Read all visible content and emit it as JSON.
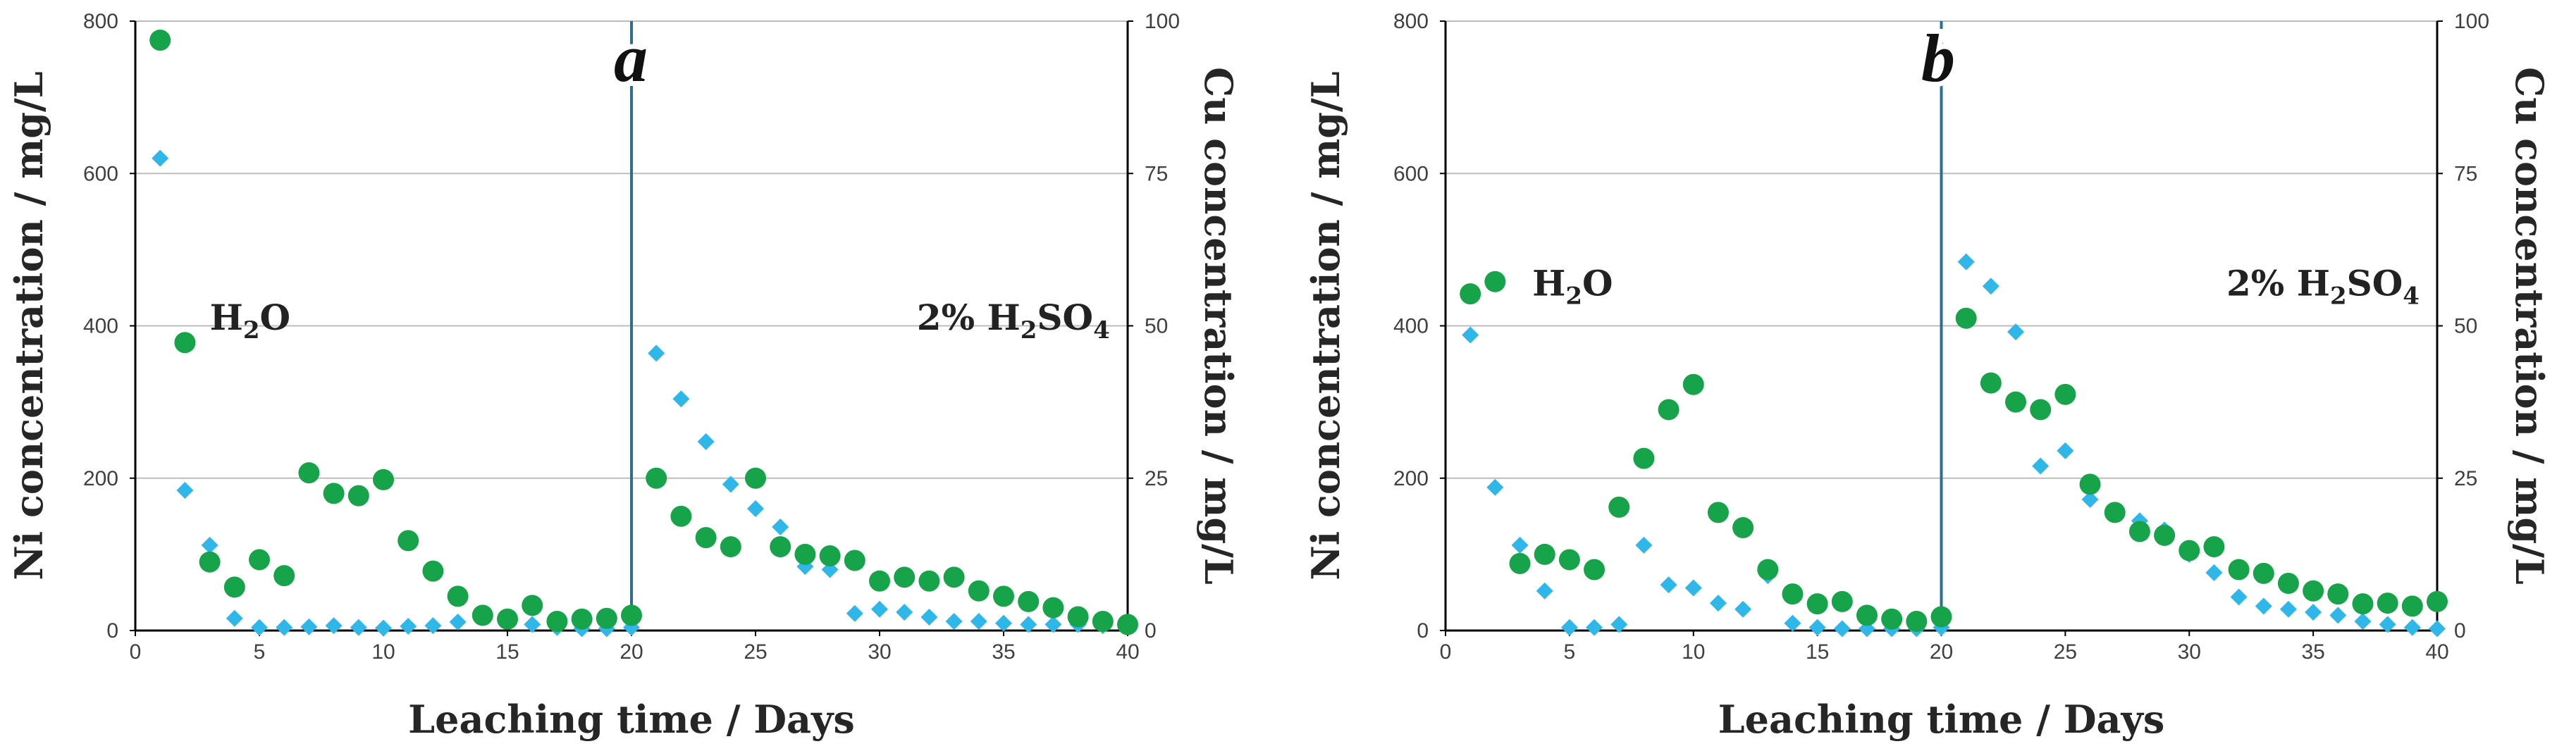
{
  "colors": {
    "ni_marker": "#17A34A",
    "cu_marker": "#2FB7EA",
    "divider_line": "#2E6E96",
    "gridline": "#BDBDBD",
    "axis": "#000000"
  },
  "chart_data": [
    {
      "type": "scatter",
      "panel_label": "a",
      "xlabel": "Leaching time / Days",
      "ylabel_left": "Ni concentration / mg/L",
      "ylabel_right": "Cu concentration / mg/L",
      "xlim": [
        0,
        40
      ],
      "ylim_left": [
        0,
        800
      ],
      "ylim_right": [
        0,
        100
      ],
      "xticks": [
        0,
        5,
        10,
        15,
        20,
        25,
        30,
        35,
        40
      ],
      "yticks_left": [
        0,
        200,
        400,
        600,
        800
      ],
      "yticks_right": [
        0,
        25,
        50,
        75,
        100
      ],
      "grid": true,
      "divider_x": 20,
      "annotations": [
        {
          "base": "H",
          "sub": "2",
          "tail": "O",
          "x": 3,
          "y": 395
        },
        {
          "base": "2% H",
          "sub": "2",
          "tail": "SO",
          "sub2": "4",
          "x": 31.5,
          "y": 395
        }
      ],
      "series": [
        {
          "name": "Ni",
          "axis": "left",
          "marker": "circle",
          "x": [
            1,
            2,
            3,
            4,
            5,
            6,
            7,
            8,
            9,
            10,
            11,
            12,
            13,
            14,
            15,
            16,
            17,
            18,
            19,
            20,
            21,
            22,
            23,
            24,
            25,
            26,
            27,
            28,
            29,
            30,
            31,
            32,
            33,
            34,
            35,
            36,
            37,
            38,
            39,
            40
          ],
          "values": [
            775,
            378,
            90,
            57,
            93,
            72,
            207,
            180,
            177,
            198,
            118,
            78,
            45,
            20,
            15,
            33,
            12,
            15,
            16,
            20,
            200,
            150,
            122,
            110,
            200,
            110,
            100,
            98,
            92,
            65,
            70,
            65,
            70,
            52,
            45,
            38,
            30,
            18,
            12,
            8
          ]
        },
        {
          "name": "Cu",
          "axis": "right",
          "marker": "diamond",
          "x": [
            1,
            2,
            3,
            4,
            5,
            6,
            7,
            8,
            9,
            10,
            11,
            12,
            13,
            14,
            15,
            16,
            17,
            18,
            19,
            20,
            21,
            22,
            23,
            24,
            25,
            26,
            27,
            28,
            29,
            30,
            31,
            32,
            33,
            34,
            35,
            36,
            37,
            38,
            39,
            40
          ],
          "values": [
            77.5,
            23,
            14,
            2,
            0.5,
            0.5,
            0.6,
            0.8,
            0.5,
            0.4,
            0.7,
            0.8,
            1.4,
            2.2,
            2,
            1,
            0.5,
            0.3,
            0.3,
            0.5,
            45.5,
            38,
            31,
            24,
            20,
            17,
            10.5,
            10,
            2.8,
            3.5,
            3,
            2.2,
            1.5,
            1.5,
            1.2,
            1,
            1,
            1,
            0.8,
            0.6
          ]
        }
      ]
    },
    {
      "type": "scatter",
      "panel_label": "b",
      "xlabel": "Leaching time / Days",
      "ylabel_left": "Ni concentration / mg/L",
      "ylabel_right": "Cu concentration / mg/L",
      "xlim": [
        0,
        40
      ],
      "ylim_left": [
        0,
        800
      ],
      "ylim_right": [
        0,
        100
      ],
      "xticks": [
        0,
        5,
        10,
        15,
        20,
        25,
        30,
        35,
        40
      ],
      "yticks_left": [
        0,
        200,
        400,
        600,
        800
      ],
      "yticks_right": [
        0,
        25,
        50,
        75,
        100
      ],
      "grid": true,
      "divider_x": 20,
      "annotations": [
        {
          "base": "H",
          "sub": "2",
          "tail": "O",
          "x": 3.5,
          "y": 440
        },
        {
          "base": "2% H",
          "sub": "2",
          "tail": "SO",
          "sub2": "4",
          "x": 31.5,
          "y": 440
        }
      ],
      "series": [
        {
          "name": "Ni",
          "axis": "left",
          "marker": "circle",
          "x": [
            1,
            2,
            3,
            4,
            5,
            6,
            7,
            8,
            9,
            10,
            11,
            12,
            13,
            14,
            15,
            16,
            17,
            18,
            19,
            20,
            21,
            22,
            23,
            24,
            25,
            26,
            27,
            28,
            29,
            30,
            31,
            32,
            33,
            34,
            35,
            36,
            37,
            38,
            39,
            40
          ],
          "values": [
            442,
            458,
            88,
            100,
            93,
            80,
            162,
            226,
            290,
            323,
            155,
            135,
            80,
            48,
            35,
            38,
            20,
            15,
            12,
            18,
            410,
            325,
            300,
            290,
            310,
            192,
            155,
            130,
            125,
            105,
            110,
            80,
            75,
            62,
            52,
            48,
            35,
            36,
            32,
            38
          ]
        },
        {
          "name": "Cu",
          "axis": "right",
          "marker": "diamond",
          "x": [
            1,
            2,
            3,
            4,
            5,
            6,
            7,
            8,
            9,
            10,
            11,
            12,
            13,
            14,
            15,
            16,
            17,
            18,
            19,
            20,
            21,
            22,
            23,
            24,
            25,
            26,
            27,
            28,
            29,
            30,
            31,
            32,
            33,
            34,
            35,
            36,
            37,
            38,
            39,
            40
          ],
          "values": [
            48.5,
            23.5,
            14,
            6.5,
            0.5,
            0.5,
            1,
            14,
            7.5,
            7,
            4.5,
            3.5,
            9,
            1.2,
            0.5,
            0.3,
            0.3,
            0.3,
            0.3,
            0.5,
            60.5,
            56.5,
            49,
            27,
            29.5,
            21.5,
            19.5,
            18,
            16.5,
            12.5,
            9.5,
            5.5,
            4,
            3.5,
            3,
            2.5,
            1.5,
            1,
            0.5,
            0.3
          ]
        }
      ]
    }
  ]
}
